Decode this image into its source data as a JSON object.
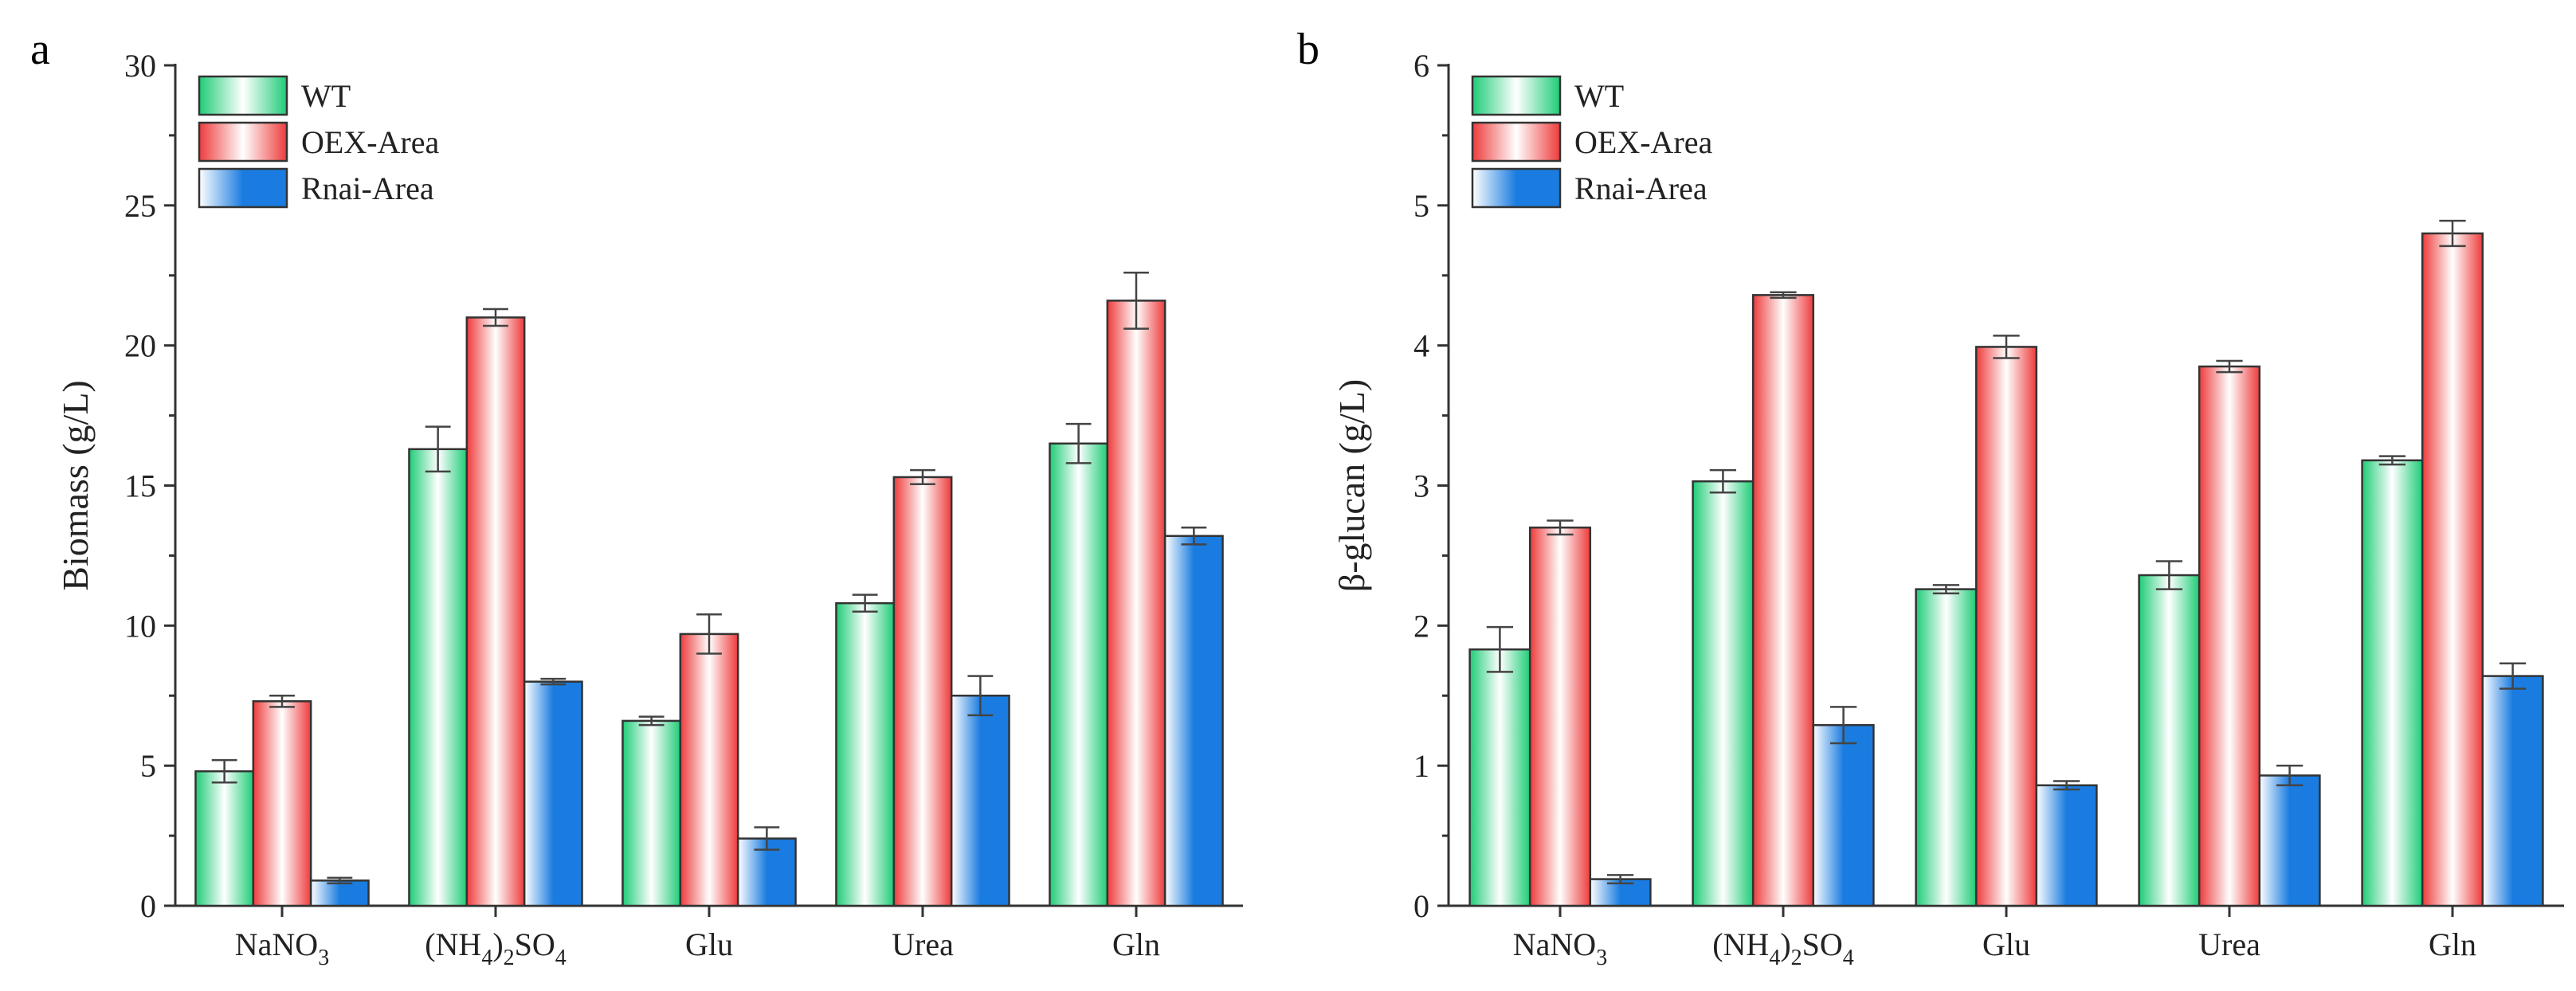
{
  "figure": {
    "panels": [
      "a",
      "b"
    ]
  },
  "colors": {
    "WT": "#1fcc77",
    "OEX-Area": "#ee3b3b",
    "Rnai-Area": "#1a7ce0"
  },
  "chart_data": [
    {
      "panel": "a",
      "type": "bar",
      "title": "",
      "xlabel": "",
      "ylabel": "Biomass (g/L)",
      "ylim": [
        0,
        30
      ],
      "yticks": [
        0,
        5,
        10,
        15,
        20,
        25,
        30
      ],
      "categories": [
        {
          "base": "NaNO",
          "sub": "3",
          "tail": ""
        },
        {
          "base": "(NH",
          "sub": "4",
          "mid": ")",
          "sub2": "2",
          "tail": "SO",
          "sub3": "4"
        },
        {
          "base": "Glu"
        },
        {
          "base": "Urea"
        },
        {
          "base": "Gln"
        }
      ],
      "series": [
        {
          "name": "WT",
          "values": [
            4.8,
            16.3,
            6.6,
            10.8,
            16.5
          ],
          "errors": [
            0.4,
            0.8,
            0.15,
            0.3,
            0.7
          ]
        },
        {
          "name": "OEX-Area",
          "values": [
            7.3,
            21.0,
            9.7,
            15.3,
            21.6
          ],
          "errors": [
            0.2,
            0.3,
            0.7,
            0.25,
            1.0
          ]
        },
        {
          "name": "Rnai-Area",
          "values": [
            0.9,
            8.0,
            2.4,
            7.5,
            13.2
          ],
          "errors": [
            0.1,
            0.1,
            0.4,
            0.7,
            0.3
          ]
        }
      ],
      "legend": {
        "position": "top-left",
        "entries": [
          "WT",
          "OEX-Area",
          "Rnai-Area"
        ]
      }
    },
    {
      "panel": "b",
      "type": "bar",
      "title": "",
      "xlabel": "",
      "ylabel": "β-glucan (g/L)",
      "ylim": [
        0,
        6
      ],
      "yticks": [
        0,
        1,
        2,
        3,
        4,
        5,
        6
      ],
      "categories": [
        {
          "base": "NaNO",
          "sub": "3",
          "tail": ""
        },
        {
          "base": "(NH",
          "sub": "4",
          "mid": ")",
          "sub2": "2",
          "tail": "SO",
          "sub3": "4"
        },
        {
          "base": "Glu"
        },
        {
          "base": "Urea"
        },
        {
          "base": "Gln"
        }
      ],
      "series": [
        {
          "name": "WT",
          "values": [
            1.83,
            3.03,
            2.26,
            2.36,
            3.18
          ],
          "errors": [
            0.16,
            0.08,
            0.03,
            0.1,
            0.03
          ]
        },
        {
          "name": "OEX-Area",
          "values": [
            2.7,
            4.36,
            3.99,
            3.85,
            4.8
          ],
          "errors": [
            0.05,
            0.02,
            0.08,
            0.04,
            0.09
          ]
        },
        {
          "name": "Rnai-Area",
          "values": [
            0.19,
            1.29,
            0.86,
            0.93,
            1.64
          ],
          "errors": [
            0.03,
            0.13,
            0.03,
            0.07,
            0.09
          ]
        }
      ],
      "legend": {
        "position": "top-left",
        "entries": [
          "WT",
          "OEX-Area",
          "Rnai-Area"
        ]
      }
    }
  ]
}
